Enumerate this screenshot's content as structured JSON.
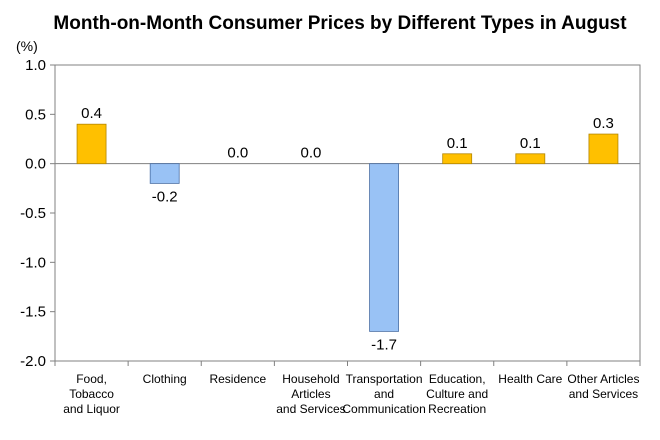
{
  "chart_data": {
    "type": "bar",
    "title": "Month-on-Month Consumer Prices by Different Types in August",
    "unit_label": "(%)",
    "categories": [
      [
        "Food,",
        "Tobacco",
        "and Liquor"
      ],
      [
        "Clothing"
      ],
      [
        "Residence"
      ],
      [
        "Household",
        "Articles",
        "and Services"
      ],
      [
        "Transportation",
        "and",
        "Communication"
      ],
      [
        "Education,",
        "Culture and",
        "Recreation"
      ],
      [
        "Health Care"
      ],
      [
        "Other Articles",
        "and Services"
      ]
    ],
    "values": [
      0.4,
      -0.2,
      0.0,
      0.0,
      -1.7,
      0.1,
      0.1,
      0.3
    ],
    "value_labels": [
      "0.4",
      "-0.2",
      "0.0",
      "0.0",
      "-1.7",
      "0.1",
      "0.1",
      "0.3"
    ],
    "ylim": [
      -2.0,
      1.0
    ],
    "yticks": [
      "1.0",
      "0.5",
      "0.0",
      "-0.5",
      "-1.0",
      "-1.5",
      "-2.0"
    ],
    "grid": false,
    "colors": {
      "positive": "#FFC000",
      "positive_stroke": "#B38600",
      "negative": "#99C2F5",
      "negative_stroke": "#4A6FA5",
      "axis": "#808080"
    }
  }
}
